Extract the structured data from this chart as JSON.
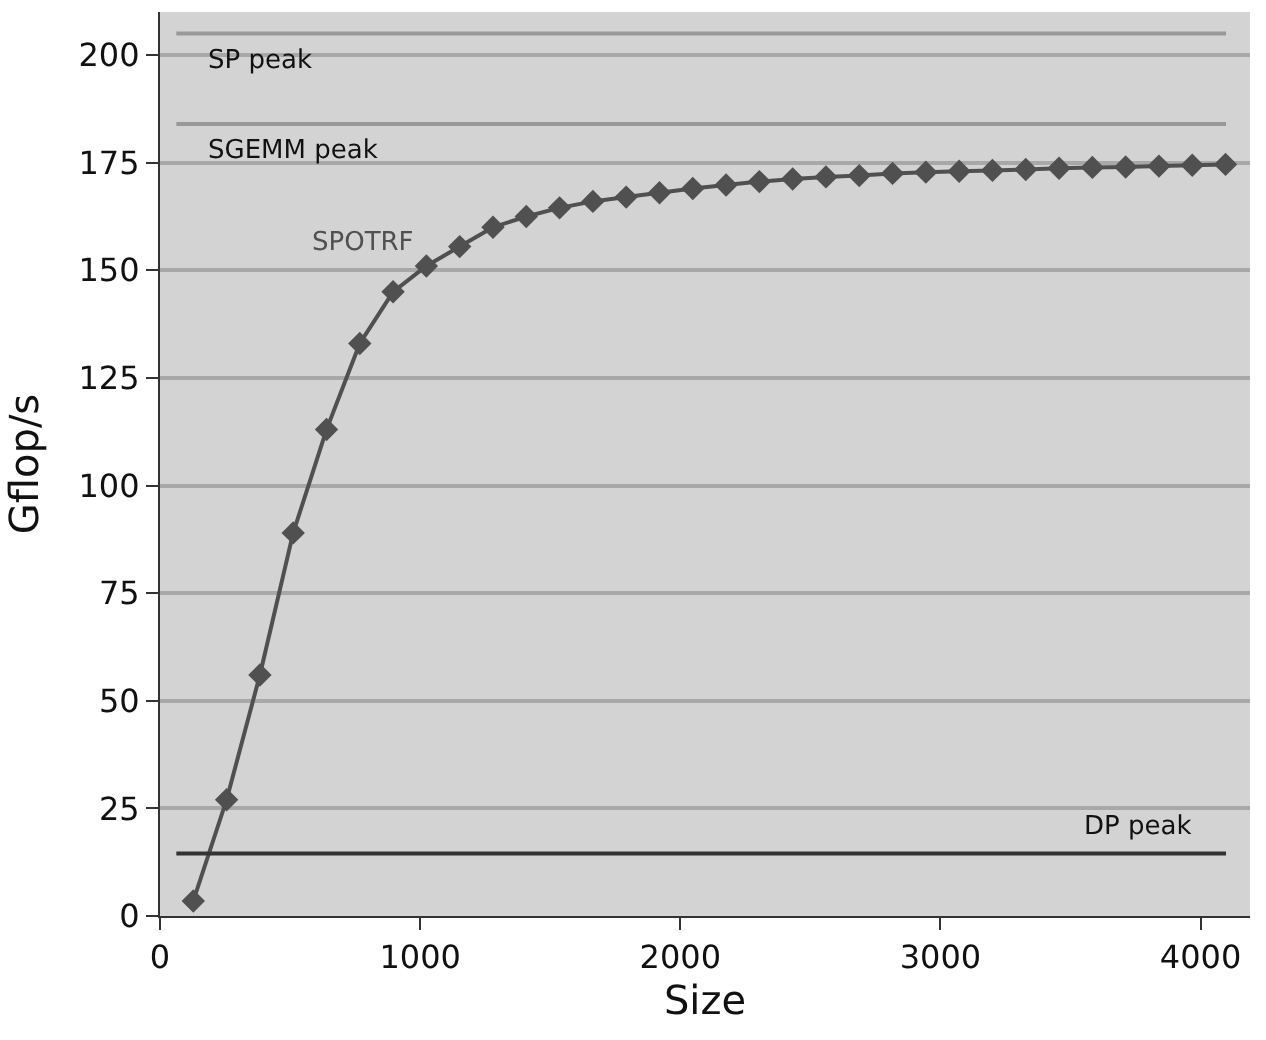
{
  "chart_data": {
    "type": "line",
    "xlabel": "Size",
    "ylabel": "Gflop/s",
    "x": [
      128,
      256,
      384,
      512,
      640,
      768,
      896,
      1024,
      1152,
      1280,
      1408,
      1536,
      1664,
      1792,
      1920,
      2048,
      2176,
      2304,
      2432,
      2560,
      2688,
      2816,
      2944,
      3072,
      3200,
      3328,
      3456,
      3584,
      3712,
      3840,
      3968,
      4096
    ],
    "series": [
      {
        "name": "SPOTRF",
        "color": "#505050",
        "values": [
          3.5,
          27,
          56,
          89,
          113,
          133,
          145,
          151,
          155.5,
          160,
          162.5,
          164.5,
          166,
          167,
          168,
          169,
          169.8,
          170.6,
          171.2,
          171.7,
          172,
          172.5,
          172.8,
          173,
          173.2,
          173.4,
          173.7,
          173.9,
          174,
          174.2,
          174.4,
          174.6
        ]
      }
    ],
    "xlim": [
      0,
      4190
    ],
    "xticks": [
      0,
      1000,
      2000,
      3000,
      4000
    ],
    "ylim": [
      0,
      210
    ],
    "yticks": [
      0,
      25,
      50,
      75,
      100,
      125,
      150,
      175,
      200
    ],
    "ref_lines": [
      {
        "axis": "y",
        "value": 205,
        "label": "SP peak",
        "color": "#999999"
      },
      {
        "axis": "y",
        "value": 184,
        "label": "SGEMM peak",
        "color": "#999999"
      },
      {
        "axis": "y",
        "value": 14.5,
        "label": "DP peak",
        "color": "#333333"
      }
    ],
    "grid": "y",
    "legend": false,
    "marker": "diamond",
    "line_style": "solid"
  }
}
